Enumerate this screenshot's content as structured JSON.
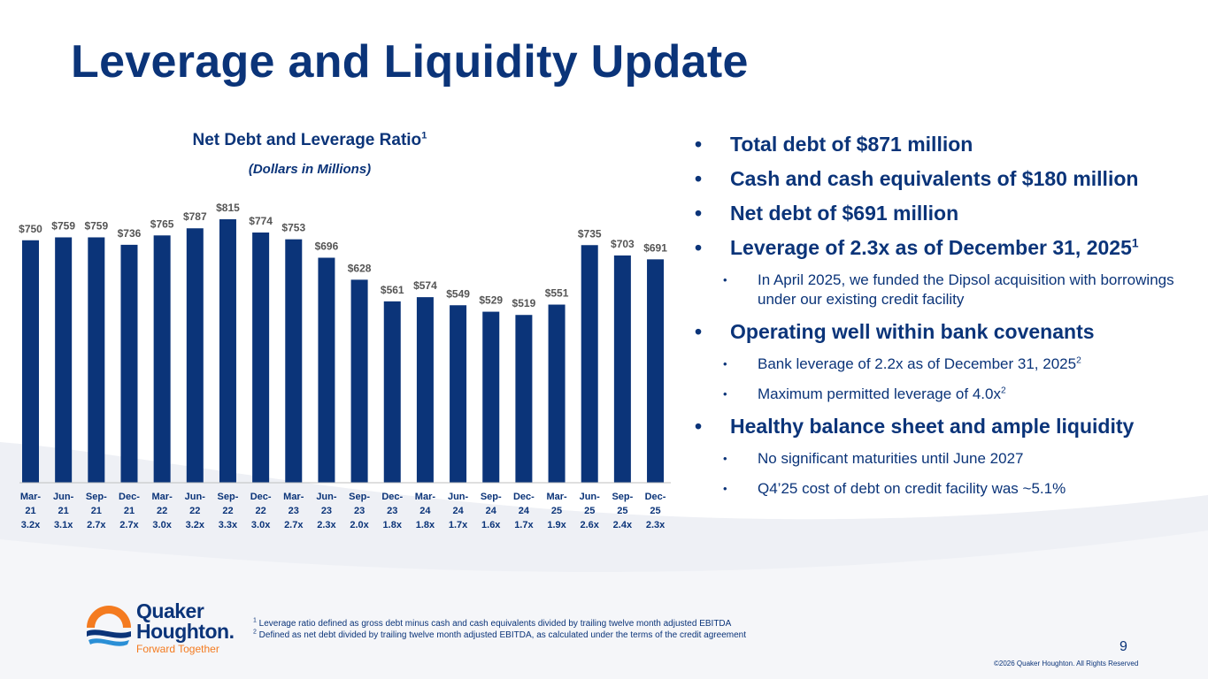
{
  "title": "Leverage and Liquidity Update",
  "chart_data": {
    "type": "bar",
    "title": "Net Debt and Leverage Ratio",
    "title_sup": "1",
    "subtitle": "(Dollars in Millions)",
    "categories": [
      [
        "Mar-",
        "21",
        "3.2x"
      ],
      [
        "Jun-",
        "21",
        "3.1x"
      ],
      [
        "Sep-",
        "21",
        "2.7x"
      ],
      [
        "Dec-",
        "21",
        "2.7x"
      ],
      [
        "Mar-",
        "22",
        "3.0x"
      ],
      [
        "Jun-",
        "22",
        "3.2x"
      ],
      [
        "Sep-",
        "22",
        "3.3x"
      ],
      [
        "Dec-",
        "22",
        "3.0x"
      ],
      [
        "Mar-",
        "23",
        "2.7x"
      ],
      [
        "Jun-",
        "23",
        "2.3x"
      ],
      [
        "Sep-",
        "23",
        "2.0x"
      ],
      [
        "Dec-",
        "23",
        "1.8x"
      ],
      [
        "Mar-",
        "24",
        "1.8x"
      ],
      [
        "Jun-",
        "24",
        "1.7x"
      ],
      [
        "Sep-",
        "24",
        "1.6x"
      ],
      [
        "Dec-",
        "24",
        "1.7x"
      ],
      [
        "Mar-",
        "25",
        "1.9x"
      ],
      [
        "Jun-",
        "25",
        "2.6x"
      ],
      [
        "Sep-",
        "25",
        "2.4x"
      ],
      [
        "Dec-",
        "25",
        "2.3x"
      ]
    ],
    "values": [
      750,
      759,
      759,
      736,
      765,
      787,
      815,
      774,
      753,
      696,
      628,
      561,
      574,
      549,
      529,
      519,
      551,
      735,
      703,
      691
    ],
    "value_labels": [
      "$750",
      "$759",
      "$759",
      "$736",
      "$765",
      "$787",
      "$815",
      "$774",
      "$753",
      "$696",
      "$628",
      "$561",
      "$574",
      "$549",
      "$529",
      "$519",
      "$551",
      "$735",
      "$703",
      "$691"
    ],
    "ylim": [
      0,
      815
    ],
    "bar_color": "#0b3479"
  },
  "bullets": [
    {
      "level": 1,
      "text": "Total debt of $871 million",
      "sup": ""
    },
    {
      "level": 1,
      "text": "Cash and cash equivalents of $180 million",
      "sup": ""
    },
    {
      "level": 1,
      "text": "Net debt of $691 million",
      "sup": ""
    },
    {
      "level": 1,
      "text": "Leverage of 2.3x as of December 31, 2025",
      "sup": "1"
    },
    {
      "level": 2,
      "text": "In April 2025, we funded the Dipsol acquisition with borrowings under our existing credit facility",
      "sup": ""
    },
    {
      "level": 1,
      "text": "Operating well within bank covenants",
      "sup": ""
    },
    {
      "level": 2,
      "text": "Bank leverage of 2.2x as of December 31, 2025",
      "sup": "2"
    },
    {
      "level": 2,
      "text": "Maximum permitted leverage of 4.0x",
      "sup": "2"
    },
    {
      "level": 1,
      "text": "Healthy balance sheet and ample liquidity",
      "sup": ""
    },
    {
      "level": 2,
      "text": "No significant maturities until June 2027",
      "sup": ""
    },
    {
      "level": 2,
      "text": "Q4’25 cost of debt on credit facility was ~5.1%",
      "sup": ""
    }
  ],
  "footnotes": [
    {
      "num": "1",
      "text": " Leverage ratio defined as gross debt minus cash and cash equivalents divided by trailing twelve month adjusted EBITDA"
    },
    {
      "num": "2",
      "text": " Defined as net debt divided by trailing twelve month adjusted EBITDA, as calculated under the terms of the credit agreement"
    }
  ],
  "page_number": "9",
  "copyright": "©2026 Quaker Houghton. All Rights Reserved",
  "logo": {
    "line1": "Quaker",
    "line2": "Houghton.",
    "tagline": "Forward Together"
  },
  "colors": {
    "brand": "#0b3479",
    "accent": "#f47b20",
    "swoosh": "#eef0f5"
  }
}
